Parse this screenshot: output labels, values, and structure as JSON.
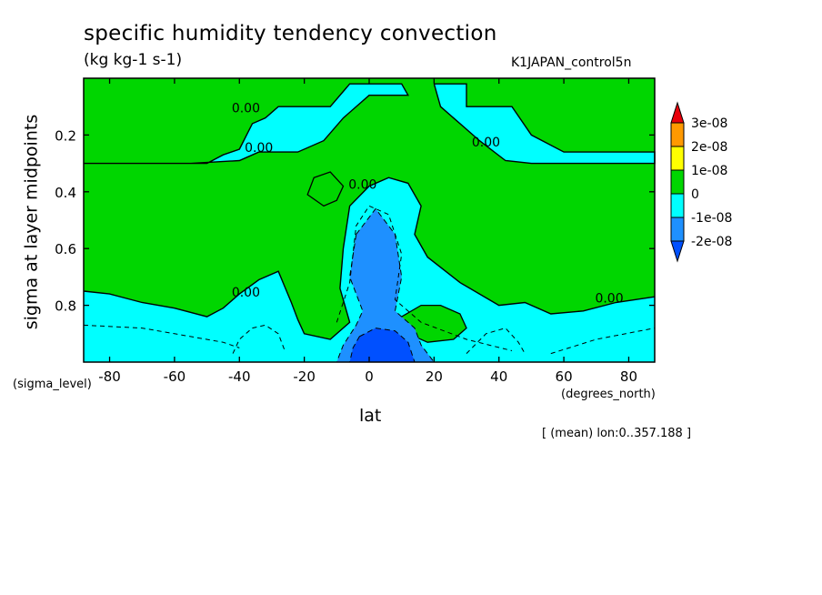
{
  "chart_data": {
    "type": "contour",
    "title": "specific humidity tendency convection",
    "units": "(kg kg-1 s-1)",
    "dataset": "K1JAPAN_control5n",
    "xlabel": "lat",
    "xunits": "(degrees_north)",
    "ylabel": "sigma at layer midpoints",
    "yunits": "(sigma_level)",
    "note": "[ (mean) lon:0..357.188 ]",
    "xlim": [
      -88,
      88
    ],
    "ylim": [
      1.0,
      0.0
    ],
    "xticks": [
      -80,
      -60,
      -40,
      -20,
      0,
      20,
      40,
      60,
      80
    ],
    "xtick_labels": [
      "-80",
      "-60",
      "-40",
      "-20",
      "0",
      "20",
      "40",
      "60",
      "80"
    ],
    "yticks": [
      0.2,
      0.4,
      0.6,
      0.8
    ],
    "ytick_labels": [
      "0.2",
      "0.4",
      "0.6",
      "0.8"
    ],
    "contour_labels": [
      {
        "text": "0.00",
        "x": -38,
        "y": 0.12
      },
      {
        "text": "0.00",
        "x": -34,
        "y": 0.26
      },
      {
        "text": "0.00",
        "x": -2,
        "y": 0.39
      },
      {
        "text": "0.00",
        "x": 36,
        "y": 0.24
      },
      {
        "text": "0.00",
        "x": -38,
        "y": 0.77
      },
      {
        "text": "0.00",
        "x": 74,
        "y": 0.79
      }
    ],
    "colorbar": {
      "levels": [
        "3e-08",
        "2e-08",
        "1e-08",
        "0",
        "-1e-08",
        "-2e-08"
      ],
      "colors": [
        "#e8000b",
        "#ff9900",
        "#ffff00",
        "#00d600",
        "#00ffff",
        "#1e90ff",
        "#0050ff"
      ]
    },
    "fill_colors": {
      "positive": "#00d600",
      "weak_negative": "#00ffff",
      "moderate_negative": "#1e90ff",
      "strong_negative": "#0050ff"
    },
    "regions": {
      "upper_cyan_band_left": [
        [
          -88,
          0.3
        ],
        [
          -80,
          0.3
        ],
        [
          -70,
          0.3
        ],
        [
          -60,
          0.3
        ],
        [
          -50,
          0.3
        ],
        [
          -45,
          0.27
        ],
        [
          -40,
          0.25
        ],
        [
          -36,
          0.16
        ],
        [
          -32,
          0.14
        ],
        [
          -28,
          0.1
        ],
        [
          -12,
          0.1
        ],
        [
          -6,
          0.02
        ],
        [
          10,
          0.02
        ],
        [
          12,
          0.06
        ],
        [
          0,
          0.06
        ],
        [
          -8,
          0.14
        ],
        [
          -14,
          0.22
        ],
        [
          -22,
          0.26
        ],
        [
          -34,
          0.26
        ],
        [
          -40,
          0.29
        ],
        [
          -55,
          0.3
        ],
        [
          -70,
          0.3
        ],
        [
          -88,
          0.3
        ]
      ],
      "upper_cyan_band_right": [
        [
          20,
          0.02
        ],
        [
          30,
          0.02
        ],
        [
          30,
          0.1
        ],
        [
          44,
          0.1
        ],
        [
          50,
          0.2
        ],
        [
          60,
          0.26
        ],
        [
          70,
          0.26
        ],
        [
          80,
          0.26
        ],
        [
          88,
          0.26
        ],
        [
          88,
          0.3
        ],
        [
          70,
          0.3
        ],
        [
          50,
          0.3
        ],
        [
          42,
          0.29
        ],
        [
          34,
          0.22
        ],
        [
          26,
          0.14
        ],
        [
          22,
          0.1
        ],
        [
          20,
          0.02
        ]
      ],
      "lower_cyan_region": [
        [
          -88,
          0.75
        ],
        [
          -80,
          0.76
        ],
        [
          -70,
          0.79
        ],
        [
          -60,
          0.81
        ],
        [
          -50,
          0.84
        ],
        [
          -45,
          0.81
        ],
        [
          -40,
          0.76
        ],
        [
          -34,
          0.71
        ],
        [
          -28,
          0.68
        ],
        [
          -24,
          0.79
        ],
        [
          -22,
          0.85
        ],
        [
          -20,
          0.9
        ],
        [
          -12,
          0.92
        ],
        [
          -6,
          0.86
        ],
        [
          -9,
          0.74
        ],
        [
          -8,
          0.6
        ],
        [
          -6,
          0.45
        ],
        [
          0,
          0.38
        ],
        [
          6,
          0.35
        ],
        [
          12,
          0.37
        ],
        [
          16,
          0.45
        ],
        [
          14,
          0.55
        ],
        [
          18,
          0.63
        ],
        [
          28,
          0.72
        ],
        [
          40,
          0.8
        ],
        [
          48,
          0.79
        ],
        [
          56,
          0.83
        ],
        [
          66,
          0.82
        ],
        [
          76,
          0.79
        ],
        [
          88,
          0.77
        ],
        [
          88,
          1.0
        ],
        [
          -88,
          1.0
        ]
      ],
      "green_island_lower": [
        [
          10,
          0.84
        ],
        [
          16,
          0.8
        ],
        [
          22,
          0.8
        ],
        [
          28,
          0.83
        ],
        [
          30,
          0.88
        ],
        [
          26,
          0.92
        ],
        [
          18,
          0.93
        ],
        [
          12,
          0.9
        ],
        [
          10,
          0.84
        ]
      ],
      "green_island_upper": [
        [
          -17,
          0.35
        ],
        [
          -12,
          0.33
        ],
        [
          -8,
          0.38
        ],
        [
          -10,
          0.43
        ],
        [
          -14,
          0.45
        ],
        [
          -19,
          0.41
        ],
        [
          -17,
          0.35
        ]
      ],
      "blue_core": [
        [
          -4,
          0.55
        ],
        [
          2,
          0.46
        ],
        [
          8,
          0.55
        ],
        [
          10,
          0.7
        ],
        [
          8,
          0.82
        ],
        [
          14,
          0.88
        ],
        [
          16,
          0.94
        ],
        [
          20,
          1.0
        ],
        [
          -10,
          1.0
        ],
        [
          -8,
          0.94
        ],
        [
          -4,
          0.87
        ],
        [
          -2,
          0.82
        ],
        [
          -6,
          0.7
        ],
        [
          -4,
          0.55
        ]
      ],
      "deep_blue_core": [
        [
          -3,
          0.91
        ],
        [
          2,
          0.88
        ],
        [
          8,
          0.89
        ],
        [
          12,
          0.93
        ],
        [
          14,
          1.0
        ],
        [
          -6,
          1.0
        ],
        [
          -5,
          0.95
        ],
        [
          -3,
          0.91
        ]
      ]
    }
  }
}
